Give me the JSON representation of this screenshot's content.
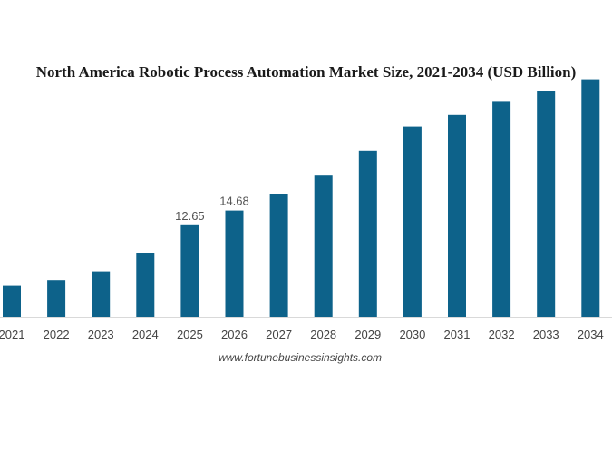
{
  "chart_data": {
    "type": "bar",
    "title": "North America Robotic Process Automation Market Size, 2021-2034 (USD Billion)",
    "xlabel": "",
    "ylabel": "",
    "categories": [
      "2021",
      "2022",
      "2023",
      "2024",
      "2025",
      "2026",
      "2027",
      "2028",
      "2029",
      "2030",
      "2031",
      "2032",
      "2033",
      "2034"
    ],
    "values": [
      4.3,
      5.1,
      6.3,
      8.8,
      12.65,
      14.68,
      17.0,
      19.6,
      22.9,
      26.3,
      27.9,
      29.7,
      31.2,
      32.8
    ],
    "data_labels": [
      {
        "category": "2025",
        "text": "12.65"
      },
      {
        "category": "2026",
        "text": "14.68"
      }
    ],
    "ylim": [
      0,
      37.5
    ],
    "bar_color": "#0d628a",
    "axis_color": "#d9d9d9",
    "grid": false,
    "legend": "none"
  },
  "source": "www.fortunebusinessinsights.com"
}
